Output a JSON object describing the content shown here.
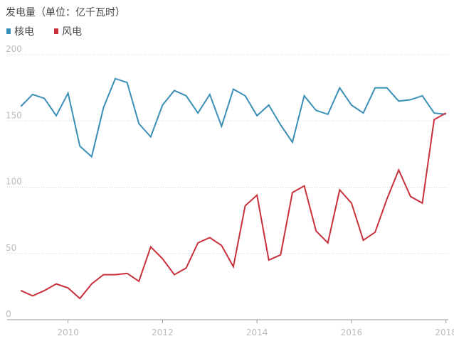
{
  "chart_data": {
    "type": "line",
    "title": "发电量（单位：亿千瓦时）",
    "x": [
      2009,
      2009.25,
      2009.5,
      2009.75,
      2010,
      2010.25,
      2010.5,
      2010.75,
      2011,
      2011.25,
      2011.5,
      2011.75,
      2012,
      2012.25,
      2012.5,
      2012.75,
      2013,
      2013.25,
      2013.5,
      2013.75,
      2014,
      2014.25,
      2014.5,
      2014.75,
      2015,
      2015.25,
      2015.5,
      2015.75,
      2016,
      2016.25,
      2016.5,
      2016.75,
      2017,
      2017.25,
      2017.5,
      2017.75,
      2018
    ],
    "series": [
      {
        "name": "核电",
        "color": "#3a8fb7",
        "values": [
          161,
          170,
          167,
          154,
          171,
          131,
          123,
          160,
          182,
          179,
          148,
          138,
          162,
          173,
          169,
          156,
          170,
          146,
          174,
          169,
          154,
          162,
          147,
          134,
          169,
          158,
          155,
          175,
          162,
          156,
          175,
          175,
          165,
          166,
          169,
          156,
          155
        ]
      },
      {
        "name": "风电",
        "color": "#c8303a",
        "values": [
          22,
          18,
          22,
          27,
          24,
          16,
          27,
          34,
          34,
          35,
          29,
          55,
          46,
          34,
          39,
          58,
          62,
          56,
          40,
          86,
          94,
          45,
          49,
          96,
          101,
          67,
          58,
          98,
          88,
          60,
          66,
          91,
          113,
          93,
          88,
          151,
          156
        ]
      }
    ],
    "xlim": [
      2008.71,
      2018.05
    ],
    "xticks": [
      2010,
      2012,
      2014,
      2016,
      2018
    ],
    "ylim": [
      0,
      200
    ],
    "yticks": [
      0,
      50,
      100,
      150,
      200
    ],
    "grid": true
  }
}
